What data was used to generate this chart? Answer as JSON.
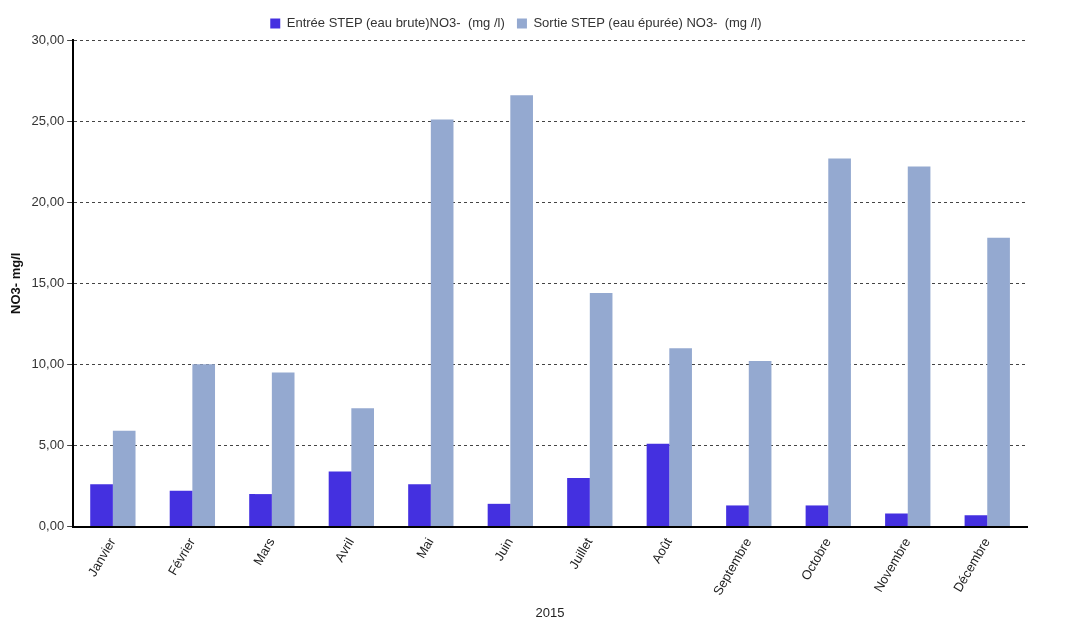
{
  "chart_data": {
    "type": "bar",
    "categories": [
      "Janvier",
      "Février",
      "Mars",
      "Avril",
      "Mai",
      "Juin",
      "Juillet",
      "Août",
      "Septembre",
      "Octobre",
      "Novembre",
      "Décembre"
    ],
    "series": [
      {
        "name": "Entrée STEP (eau brute)NO3-  (mg /l)",
        "color": "#4430e0",
        "values": [
          2.6,
          2.2,
          2.0,
          3.4,
          2.6,
          1.4,
          3.0,
          5.1,
          1.3,
          1.3,
          0.8,
          0.7
        ]
      },
      {
        "name": "Sortie STEP (eau épurée) NO3-  (mg /l)",
        "color": "#94a9d0",
        "values": [
          5.9,
          10.0,
          9.5,
          7.3,
          25.1,
          26.6,
          14.4,
          11.0,
          10.2,
          22.7,
          22.2,
          17.8
        ]
      }
    ],
    "xlabel": "2015",
    "ylabel": "NO3- mg/l",
    "ylim": [
      0,
      30
    ],
    "yticks": [
      {
        "value": 0,
        "label": "0,00"
      },
      {
        "value": 5,
        "label": "5,00"
      },
      {
        "value": 10,
        "label": "10,00"
      },
      {
        "value": 15,
        "label": "15,00"
      },
      {
        "value": 20,
        "label": "20,00"
      },
      {
        "value": 25,
        "label": "25,00"
      },
      {
        "value": 30,
        "label": "30,00"
      }
    ],
    "grid": "y",
    "legend": "top"
  }
}
